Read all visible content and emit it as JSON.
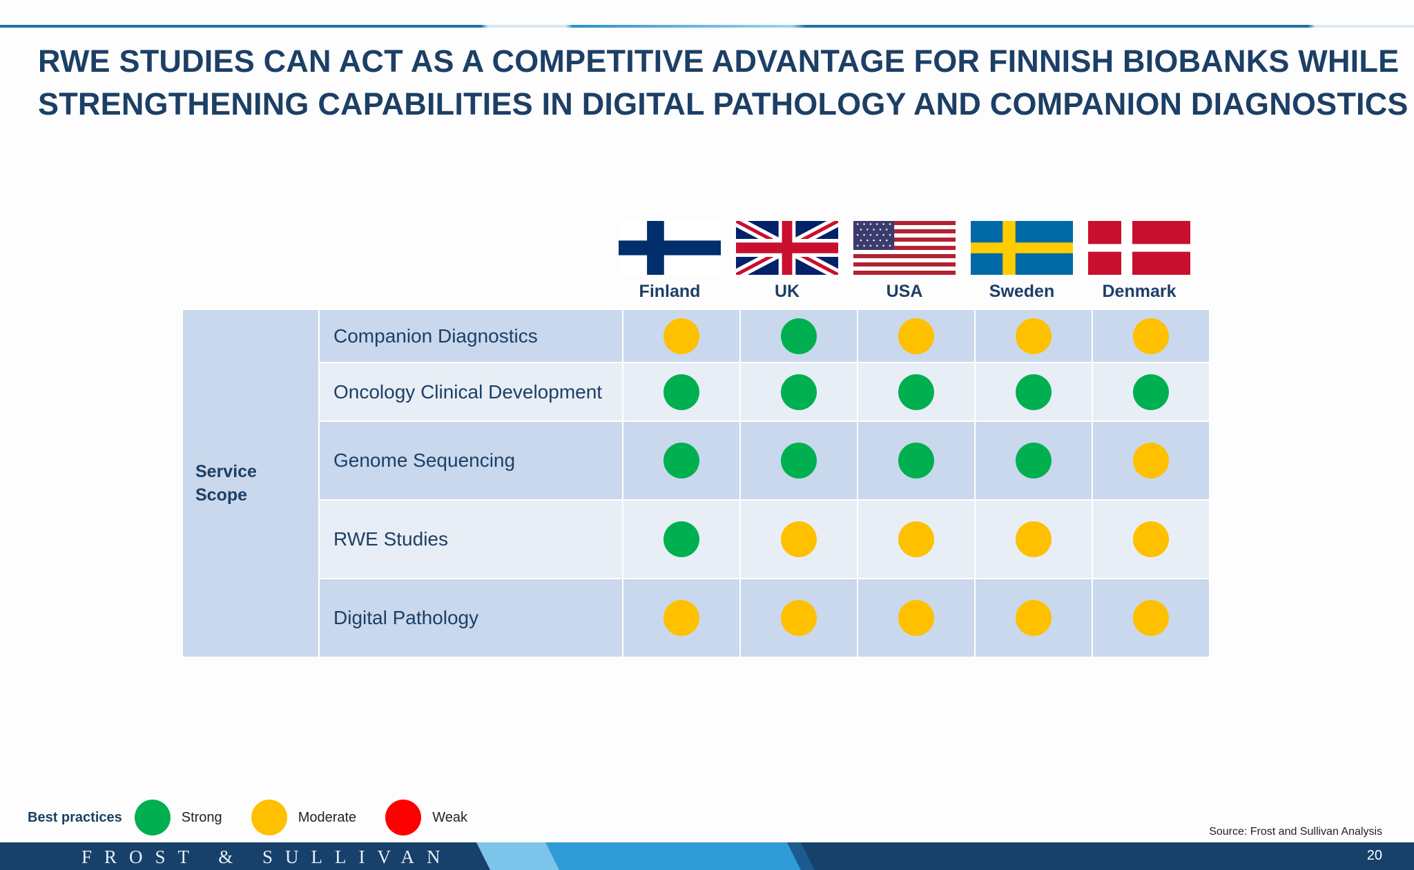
{
  "title_lines": [
    "RWE STUDIES CAN ACT AS A COMPETITIVE ADVANTAGE FOR FINNISH BIOBANKS WHILE",
    "STRENGTHENING CAPABILITIES IN DIGITAL PATHOLOGY AND COMPANION DIAGNOSTICS"
  ],
  "countries": [
    "Finland",
    "UK",
    "USA",
    "Sweden",
    "Denmark"
  ],
  "scope_label_lines": [
    "Service",
    "Scope"
  ],
  "rows": [
    {
      "label": "Companion Diagnostics",
      "ratings": [
        "moderate",
        "strong",
        "moderate",
        "moderate",
        "moderate"
      ]
    },
    {
      "label": "Oncology Clinical Development",
      "ratings": [
        "strong",
        "strong",
        "strong",
        "strong",
        "strong"
      ]
    },
    {
      "label": "Genome Sequencing",
      "ratings": [
        "strong",
        "strong",
        "strong",
        "strong",
        "moderate"
      ]
    },
    {
      "label": "RWE Studies",
      "ratings": [
        "strong",
        "moderate",
        "moderate",
        "moderate",
        "moderate"
      ]
    },
    {
      "label": "Digital Pathology",
      "ratings": [
        "moderate",
        "moderate",
        "moderate",
        "moderate",
        "moderate"
      ]
    }
  ],
  "legend": {
    "label": "Best practices",
    "items": [
      {
        "key": "strong",
        "text": "Strong",
        "color": "#00b050"
      },
      {
        "key": "moderate",
        "text": "Moderate",
        "color": "#ffc000"
      },
      {
        "key": "weak",
        "text": "Weak",
        "color": "#ff0000"
      }
    ]
  },
  "source": "Source: Frost and Sullivan Analysis",
  "brand": "FROST & SULLIVAN",
  "page_number": "20",
  "colors": {
    "title": "#1c3f66",
    "cell_dark": "#c9d8ec",
    "cell_light": "#e8eef6",
    "footer": "#17406a"
  }
}
